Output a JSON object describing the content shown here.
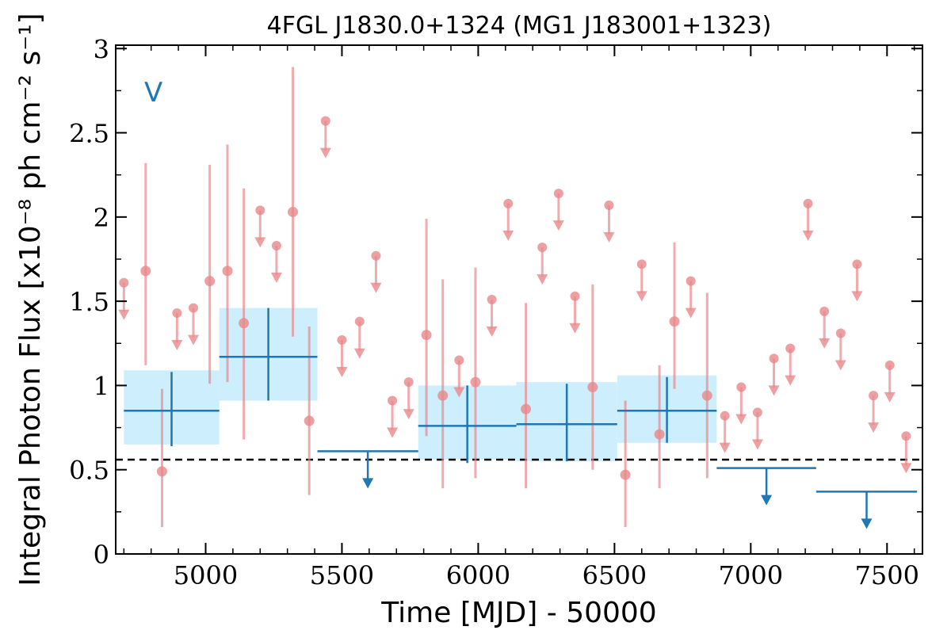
{
  "chart_data": {
    "type": "scatter",
    "title": "4FGL J1830.0+1324 (MG1 J183001+1323)",
    "xlabel": "Time [MJD] - 50000",
    "ylabel": "Integral Photon Flux [x10⁻⁸ ph cm⁻² s⁻¹]",
    "panel_label": "V",
    "xlim": [
      4670,
      7630
    ],
    "ylim": [
      0,
      3.02
    ],
    "x_ticks": [
      {
        "value": 5000,
        "label": "5000"
      },
      {
        "value": 5500,
        "label": "5500"
      },
      {
        "value": 6000,
        "label": "6000"
      },
      {
        "value": 6500,
        "label": "6500"
      },
      {
        "value": 7000,
        "label": "7000"
      },
      {
        "value": 7500,
        "label": "7500"
      }
    ],
    "y_ticks": [
      {
        "value": 0,
        "label": "0"
      },
      {
        "value": 0.5,
        "label": "0.5"
      },
      {
        "value": 1,
        "label": "1"
      },
      {
        "value": 1.5,
        "label": "1.5"
      },
      {
        "value": 2,
        "label": "2"
      },
      {
        "value": 2.5,
        "label": "2.5"
      },
      {
        "value": 3,
        "label": "3"
      }
    ],
    "reference_line": {
      "y": 0.56,
      "style": "dashed",
      "color": "#000000"
    },
    "colors": {
      "short_bins": "#e8888a",
      "long_bins": "#1f77b4",
      "long_band": "#cdeefc"
    },
    "series": [
      {
        "key": "short_detections",
        "points": [
          {
            "x": 4780,
            "y": 1.68,
            "lo": 1.12,
            "hi": 2.32
          },
          {
            "x": 4840,
            "y": 0.49,
            "lo": 0.16,
            "hi": 0.98
          },
          {
            "x": 5015,
            "y": 1.62,
            "lo": 1.01,
            "hi": 2.31
          },
          {
            "x": 5080,
            "y": 1.68,
            "lo": 1.02,
            "hi": 2.43
          },
          {
            "x": 5140,
            "y": 1.37,
            "lo": 0.68,
            "hi": 2.17
          },
          {
            "x": 5320,
            "y": 2.03,
            "lo": 1.29,
            "hi": 2.89
          },
          {
            "x": 5380,
            "y": 0.79,
            "lo": 0.35,
            "hi": 1.35
          },
          {
            "x": 5810,
            "y": 1.3,
            "lo": 0.7,
            "hi": 1.99
          },
          {
            "x": 5870,
            "y": 0.94,
            "lo": 0.39,
            "hi": 1.63
          },
          {
            "x": 5990,
            "y": 1.02,
            "lo": 0.45,
            "hi": 1.7
          },
          {
            "x": 6175,
            "y": 0.86,
            "lo": 0.39,
            "hi": 1.49
          },
          {
            "x": 6420,
            "y": 0.99,
            "lo": 0.5,
            "hi": 1.6
          },
          {
            "x": 6540,
            "y": 0.47,
            "lo": 0.16,
            "hi": 0.91
          },
          {
            "x": 6665,
            "y": 0.71,
            "lo": 0.39,
            "hi": 1.12
          },
          {
            "x": 6720,
            "y": 1.38,
            "lo": 0.98,
            "hi": 1.85
          },
          {
            "x": 6840,
            "y": 0.94,
            "lo": 0.45,
            "hi": 1.55
          }
        ]
      },
      {
        "key": "short_upper_limits",
        "points": [
          {
            "x": 4700,
            "y": 1.61
          },
          {
            "x": 4895,
            "y": 1.43
          },
          {
            "x": 4955,
            "y": 1.46
          },
          {
            "x": 5200,
            "y": 2.04
          },
          {
            "x": 5260,
            "y": 1.83
          },
          {
            "x": 5440,
            "y": 2.57
          },
          {
            "x": 5500,
            "y": 1.27
          },
          {
            "x": 5565,
            "y": 1.38
          },
          {
            "x": 5625,
            "y": 1.77
          },
          {
            "x": 5685,
            "y": 0.91
          },
          {
            "x": 5745,
            "y": 1.02
          },
          {
            "x": 5930,
            "y": 1.15
          },
          {
            "x": 6050,
            "y": 1.51
          },
          {
            "x": 6110,
            "y": 2.08
          },
          {
            "x": 6235,
            "y": 1.82
          },
          {
            "x": 6295,
            "y": 2.14
          },
          {
            "x": 6355,
            "y": 1.53
          },
          {
            "x": 6480,
            "y": 2.07
          },
          {
            "x": 6600,
            "y": 1.72
          },
          {
            "x": 6780,
            "y": 1.62
          },
          {
            "x": 6905,
            "y": 0.82
          },
          {
            "x": 6965,
            "y": 0.99
          },
          {
            "x": 7025,
            "y": 0.84
          },
          {
            "x": 7085,
            "y": 1.16
          },
          {
            "x": 7145,
            "y": 1.22
          },
          {
            "x": 7210,
            "y": 2.08
          },
          {
            "x": 7270,
            "y": 1.44
          },
          {
            "x": 7330,
            "y": 1.31
          },
          {
            "x": 7390,
            "y": 1.72
          },
          {
            "x": 7450,
            "y": 0.94
          },
          {
            "x": 7510,
            "y": 1.12
          },
          {
            "x": 7570,
            "y": 0.7
          }
        ]
      },
      {
        "key": "long_detections",
        "points": [
          {
            "x0": 4700,
            "x1": 5050,
            "y": 0.85,
            "lo": 0.64,
            "hi": 1.08,
            "band_lo": 0.65,
            "band_hi": 1.09
          },
          {
            "x0": 5050,
            "x1": 5410,
            "y": 1.17,
            "lo": 0.91,
            "hi": 1.46,
            "band_lo": 0.91,
            "band_hi": 1.46
          },
          {
            "x0": 5780,
            "x1": 6140,
            "y": 0.76,
            "lo": 0.54,
            "hi": 1.0,
            "band_lo": 0.56,
            "band_hi": 1.0
          },
          {
            "x0": 6140,
            "x1": 6510,
            "y": 0.77,
            "lo": 0.55,
            "hi": 1.01,
            "band_lo": 0.55,
            "band_hi": 1.02
          },
          {
            "x0": 6510,
            "x1": 6875,
            "y": 0.85,
            "lo": 0.66,
            "hi": 1.05,
            "band_lo": 0.66,
            "band_hi": 1.06
          }
        ]
      },
      {
        "key": "long_upper_limits",
        "points": [
          {
            "x0": 5410,
            "x1": 5780,
            "y": 0.61
          },
          {
            "x0": 6875,
            "x1": 7240,
            "y": 0.51
          },
          {
            "x0": 7240,
            "x1": 7610,
            "y": 0.37
          }
        ]
      }
    ]
  }
}
